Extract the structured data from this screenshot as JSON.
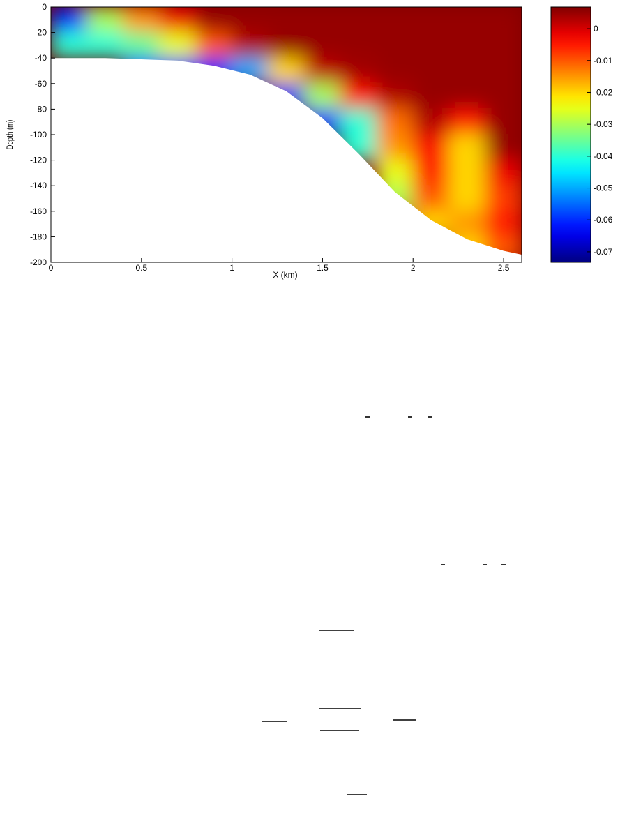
{
  "chart_data": {
    "type": "heatmap",
    "xlabel": "X (km)",
    "ylabel": "Depth (m)",
    "xlim": [
      0,
      2.6
    ],
    "ylim": [
      -200,
      0
    ],
    "xticks": [
      0,
      0.5,
      1,
      1.5,
      2,
      2.5
    ],
    "yticks": [
      -200,
      -180,
      -160,
      -140,
      -120,
      -100,
      -80,
      -60,
      -40,
      -20,
      0
    ],
    "colormap": "jet",
    "clim": [
      -0.0733,
      0.0068
    ],
    "cticks": [
      0,
      -0.01,
      -0.02,
      -0.03,
      -0.04,
      -0.05,
      -0.06,
      -0.07
    ],
    "field": {
      "x": [
        0.1,
        0.3,
        0.5,
        0.7,
        0.9,
        1.1,
        1.3,
        1.5,
        1.7,
        1.9,
        2.1,
        2.3,
        2.5
      ],
      "depth": [
        -10,
        -30,
        -50,
        -70,
        -90,
        -110,
        -130,
        -150,
        -170,
        -190
      ],
      "values": [
        [
          -0.06,
          -0.03,
          -0.015,
          -0.002,
          0.005,
          0.005,
          0.005,
          0.005,
          0.005,
          0.005,
          0.005,
          0.005,
          0.005
        ],
        [
          -0.04,
          -0.04,
          -0.035,
          -0.025,
          -0.01,
          0.003,
          0.005,
          0.005,
          0.005,
          0.005,
          0.005,
          0.005,
          0.005
        ],
        [
          null,
          null,
          -0.06,
          -0.06,
          -0.06,
          -0.05,
          -0.02,
          0.002,
          0.004,
          0.005,
          0.005,
          0.005,
          0.005
        ],
        [
          null,
          null,
          null,
          null,
          null,
          null,
          -0.06,
          -0.03,
          -0.005,
          0.003,
          0.005,
          0.005,
          0.005
        ],
        [
          null,
          null,
          null,
          null,
          null,
          null,
          null,
          -0.06,
          -0.04,
          -0.012,
          0.003,
          -0.005,
          0.005
        ],
        [
          null,
          null,
          null,
          null,
          null,
          null,
          null,
          null,
          -0.04,
          -0.015,
          -0.003,
          -0.02,
          0.005
        ],
        [
          null,
          null,
          null,
          null,
          null,
          null,
          null,
          null,
          null,
          -0.025,
          -0.005,
          -0.02,
          -0.002
        ],
        [
          null,
          null,
          null,
          null,
          null,
          null,
          null,
          null,
          null,
          -0.03,
          -0.01,
          -0.02,
          -0.008
        ],
        [
          null,
          null,
          null,
          null,
          null,
          null,
          null,
          null,
          null,
          null,
          -0.02,
          -0.015,
          -0.005
        ],
        [
          null,
          null,
          null,
          null,
          null,
          null,
          null,
          null,
          null,
          null,
          null,
          -0.02,
          -0.01
        ]
      ]
    },
    "seabed": {
      "x": [
        0,
        0.1,
        0.3,
        0.5,
        0.7,
        0.9,
        1.1,
        1.3,
        1.5,
        1.7,
        1.9,
        2.1,
        2.3,
        2.5,
        2.6
      ],
      "depth": [
        -40,
        -40,
        -40,
        -41,
        -42,
        -46,
        -53,
        -66,
        -87,
        -115,
        -145,
        -167,
        -182,
        -191,
        -194
      ]
    }
  }
}
